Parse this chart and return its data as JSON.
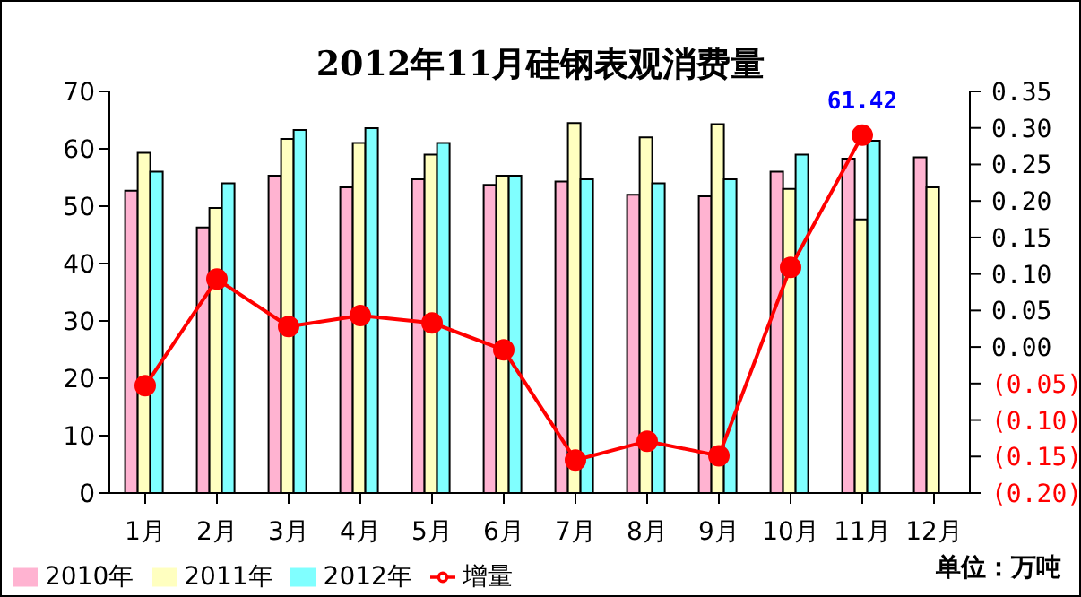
{
  "chart_data": {
    "type": "bar",
    "title": "2012年11月硅钢表观消费量",
    "categories": [
      "1月",
      "2月",
      "3月",
      "4月",
      "5月",
      "6月",
      "7月",
      "8月",
      "9月",
      "10月",
      "11月",
      "12月"
    ],
    "series": [
      {
        "name": "2010年",
        "color": "#ffb3d1",
        "values": [
          52.7,
          46.3,
          55.3,
          53.3,
          54.7,
          53.7,
          54.3,
          52,
          51.7,
          56,
          58.3,
          58.5
        ]
      },
      {
        "name": "2011年",
        "color": "#ffffc0",
        "values": [
          59.3,
          49.7,
          61.7,
          61,
          59,
          55.3,
          64.5,
          62,
          64.3,
          53,
          47.7,
          53.3
        ]
      },
      {
        "name": "2012年",
        "color": "#80ffff",
        "values": [
          56,
          54,
          63.3,
          63.6,
          61,
          55.3,
          54.7,
          54,
          54.7,
          59,
          61.42,
          null
        ]
      },
      {
        "name": "增量",
        "type": "line",
        "axis": "y2",
        "color": "#ff0000",
        "marker": "circle",
        "values": [
          -0.053,
          0.093,
          0.028,
          0.043,
          0.033,
          -0.004,
          -0.155,
          -0.129,
          -0.149,
          0.109,
          0.29,
          null
        ]
      }
    ],
    "ylim": [
      0,
      70
    ],
    "yticks": [
      0,
      10,
      20,
      30,
      40,
      50,
      60,
      70
    ],
    "y2lim": [
      -0.2,
      0.35
    ],
    "y2ticks": [
      {
        "value": -0.2,
        "label": "(0.20)"
      },
      {
        "value": -0.15,
        "label": "(0.15)"
      },
      {
        "value": -0.1,
        "label": "(0.10)"
      },
      {
        "value": -0.05,
        "label": "(0.05)"
      },
      {
        "value": 0,
        "label": "0.00"
      },
      {
        "value": 0.05,
        "label": "0.05"
      },
      {
        "value": 0.1,
        "label": "0.10"
      },
      {
        "value": 0.15,
        "label": "0.15"
      },
      {
        "value": 0.2,
        "label": "0.20"
      },
      {
        "value": 0.25,
        "label": "0.25"
      },
      {
        "value": 0.3,
        "label": "0.30"
      },
      {
        "value": 0.35,
        "label": "0.35"
      }
    ],
    "annotations": [
      {
        "text": "61.42",
        "x": "11月",
        "y": 61.42
      },
      "单位：万吨"
    ],
    "legend": "bottom",
    "grid": false
  }
}
